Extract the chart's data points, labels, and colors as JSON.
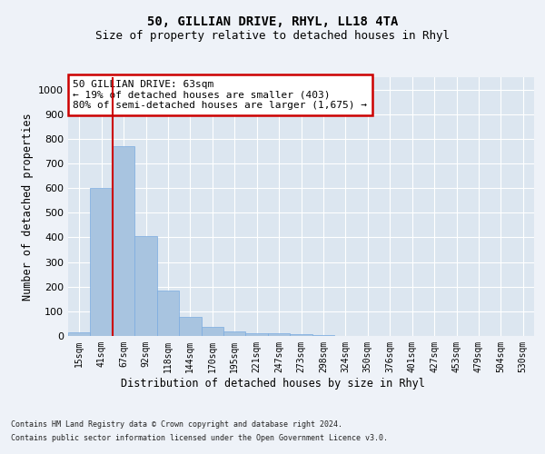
{
  "title": "50, GILLIAN DRIVE, RHYL, LL18 4TA",
  "subtitle": "Size of property relative to detached houses in Rhyl",
  "xlabel": "Distribution of detached houses by size in Rhyl",
  "ylabel": "Number of detached properties",
  "footnote1": "Contains HM Land Registry data © Crown copyright and database right 2024.",
  "footnote2": "Contains public sector information licensed under the Open Government Licence v3.0.",
  "categories": [
    "15sqm",
    "41sqm",
    "67sqm",
    "92sqm",
    "118sqm",
    "144sqm",
    "170sqm",
    "195sqm",
    "221sqm",
    "247sqm",
    "273sqm",
    "298sqm",
    "324sqm",
    "350sqm",
    "376sqm",
    "401sqm",
    "427sqm",
    "453sqm",
    "479sqm",
    "504sqm",
    "530sqm"
  ],
  "values": [
    15,
    600,
    770,
    405,
    185,
    78,
    38,
    18,
    12,
    12,
    8,
    3,
    0,
    0,
    0,
    0,
    0,
    0,
    0,
    0,
    0
  ],
  "bar_color": "#a8c4e0",
  "bar_edge_color": "#7aabe0",
  "vline_x_index": 2,
  "vline_color": "#cc0000",
  "annotation_text": "50 GILLIAN DRIVE: 63sqm\n← 19% of detached houses are smaller (403)\n80% of semi-detached houses are larger (1,675) →",
  "annotation_box_color": "#cc0000",
  "ylim": [
    0,
    1050
  ],
  "yticks": [
    0,
    100,
    200,
    300,
    400,
    500,
    600,
    700,
    800,
    900,
    1000
  ],
  "background_color": "#eef2f8",
  "plot_bg_color": "#dce6f0",
  "grid_color": "#ffffff",
  "title_fontsize": 10,
  "subtitle_fontsize": 9,
  "tick_fontsize": 7,
  "label_fontsize": 8.5,
  "footnote_fontsize": 6
}
